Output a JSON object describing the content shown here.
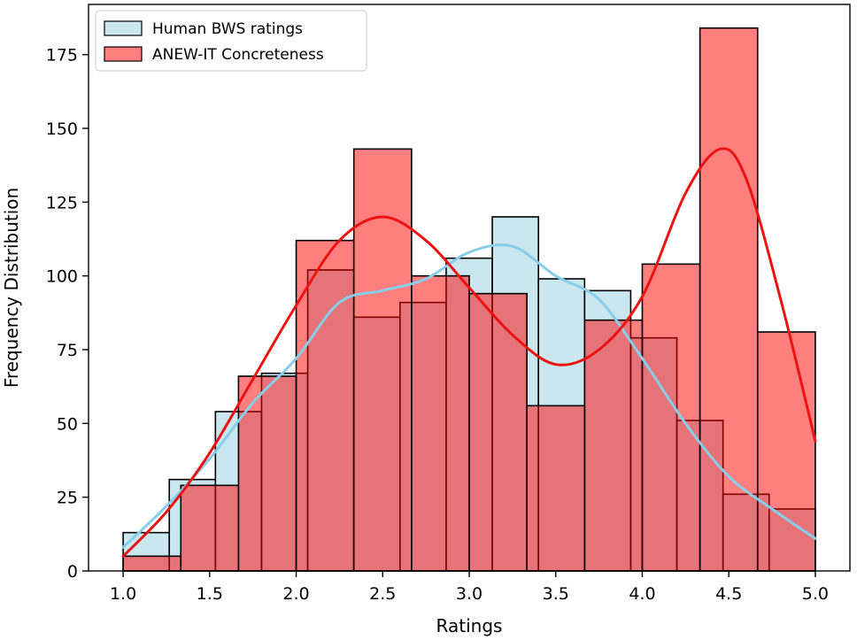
{
  "chart_data": {
    "type": "histogram",
    "title": "",
    "xlabel": "Ratings",
    "ylabel": "Frequency Distribution",
    "xlim": [
      0.8,
      5.2
    ],
    "ylim": [
      0,
      192
    ],
    "xticks": [
      {
        "value": 1.0,
        "label": "1.0"
      },
      {
        "value": 1.5,
        "label": "1.5"
      },
      {
        "value": 2.0,
        "label": "2.0"
      },
      {
        "value": 2.5,
        "label": "2.5"
      },
      {
        "value": 3.0,
        "label": "3.0"
      },
      {
        "value": 3.5,
        "label": "3.5"
      },
      {
        "value": 4.0,
        "label": "4.0"
      },
      {
        "value": 4.5,
        "label": "4.5"
      },
      {
        "value": 5.0,
        "label": "5.0"
      }
    ],
    "yticks": [
      {
        "value": 0,
        "label": "0"
      },
      {
        "value": 25,
        "label": "25"
      },
      {
        "value": 50,
        "label": "50"
      },
      {
        "value": 75,
        "label": "75"
      },
      {
        "value": 100,
        "label": "100"
      },
      {
        "value": 125,
        "label": "125"
      },
      {
        "value": 150,
        "label": "150"
      },
      {
        "value": 175,
        "label": "175"
      }
    ],
    "legend_position": "upper-left",
    "series": [
      {
        "name": "Human BWS ratings",
        "fill_color": "#add8e6",
        "fill_opacity": 0.65,
        "kde_color": "#87ceeb",
        "bins": [
          {
            "x0": 1.0,
            "x1": 1.2667,
            "count": 13
          },
          {
            "x0": 1.2667,
            "x1": 1.5333,
            "count": 31
          },
          {
            "x0": 1.5333,
            "x1": 1.8,
            "count": 54
          },
          {
            "x0": 1.8,
            "x1": 2.0667,
            "count": 67
          },
          {
            "x0": 2.0667,
            "x1": 2.3333,
            "count": 102
          },
          {
            "x0": 2.3333,
            "x1": 2.6,
            "count": 86
          },
          {
            "x0": 2.6,
            "x1": 2.8667,
            "count": 91
          },
          {
            "x0": 2.8667,
            "x1": 3.1333,
            "count": 106
          },
          {
            "x0": 3.1333,
            "x1": 3.4,
            "count": 120
          },
          {
            "x0": 3.4,
            "x1": 3.6667,
            "count": 99
          },
          {
            "x0": 3.6667,
            "x1": 3.9333,
            "count": 95
          },
          {
            "x0": 3.9333,
            "x1": 4.2,
            "count": 79
          },
          {
            "x0": 4.2,
            "x1": 4.4667,
            "count": 51
          },
          {
            "x0": 4.4667,
            "x1": 4.7333,
            "count": 26
          },
          {
            "x0": 4.7333,
            "x1": 5.0,
            "count": 21
          }
        ],
        "kde": [
          [
            1.0,
            8
          ],
          [
            1.25,
            22
          ],
          [
            1.5,
            38
          ],
          [
            1.75,
            57
          ],
          [
            2.0,
            72
          ],
          [
            2.25,
            91
          ],
          [
            2.5,
            95
          ],
          [
            2.75,
            99
          ],
          [
            3.0,
            108
          ],
          [
            3.25,
            110
          ],
          [
            3.5,
            100
          ],
          [
            3.75,
            92
          ],
          [
            4.0,
            72
          ],
          [
            4.25,
            50
          ],
          [
            4.5,
            32
          ],
          [
            4.75,
            21
          ],
          [
            5.0,
            11
          ]
        ]
      },
      {
        "name": "ANEW-IT Concreteness",
        "fill_color": "#ff0000",
        "fill_opacity": 0.5,
        "kde_color": "#ee1111",
        "bins": [
          {
            "x0": 1.0,
            "x1": 1.3333,
            "count": 5
          },
          {
            "x0": 1.3333,
            "x1": 1.6667,
            "count": 29
          },
          {
            "x0": 1.6667,
            "x1": 2.0,
            "count": 66
          },
          {
            "x0": 2.0,
            "x1": 2.3333,
            "count": 112
          },
          {
            "x0": 2.3333,
            "x1": 2.6667,
            "count": 143
          },
          {
            "x0": 2.6667,
            "x1": 3.0,
            "count": 100
          },
          {
            "x0": 3.0,
            "x1": 3.3333,
            "count": 94
          },
          {
            "x0": 3.3333,
            "x1": 3.6667,
            "count": 56
          },
          {
            "x0": 3.6667,
            "x1": 4.0,
            "count": 85
          },
          {
            "x0": 4.0,
            "x1": 4.3333,
            "count": 104
          },
          {
            "x0": 4.3333,
            "x1": 4.6667,
            "count": 184
          },
          {
            "x0": 4.6667,
            "x1": 5.0,
            "count": 81
          }
        ],
        "kde": [
          [
            1.0,
            5
          ],
          [
            1.25,
            20
          ],
          [
            1.5,
            40
          ],
          [
            1.75,
            65
          ],
          [
            2.0,
            90
          ],
          [
            2.25,
            112
          ],
          [
            2.5,
            120
          ],
          [
            2.75,
            112
          ],
          [
            3.0,
            96
          ],
          [
            3.25,
            80
          ],
          [
            3.5,
            70
          ],
          [
            3.75,
            75
          ],
          [
            4.0,
            93
          ],
          [
            4.25,
            128
          ],
          [
            4.45,
            143
          ],
          [
            4.6,
            133
          ],
          [
            4.8,
            92
          ],
          [
            5.0,
            44
          ]
        ]
      }
    ]
  }
}
